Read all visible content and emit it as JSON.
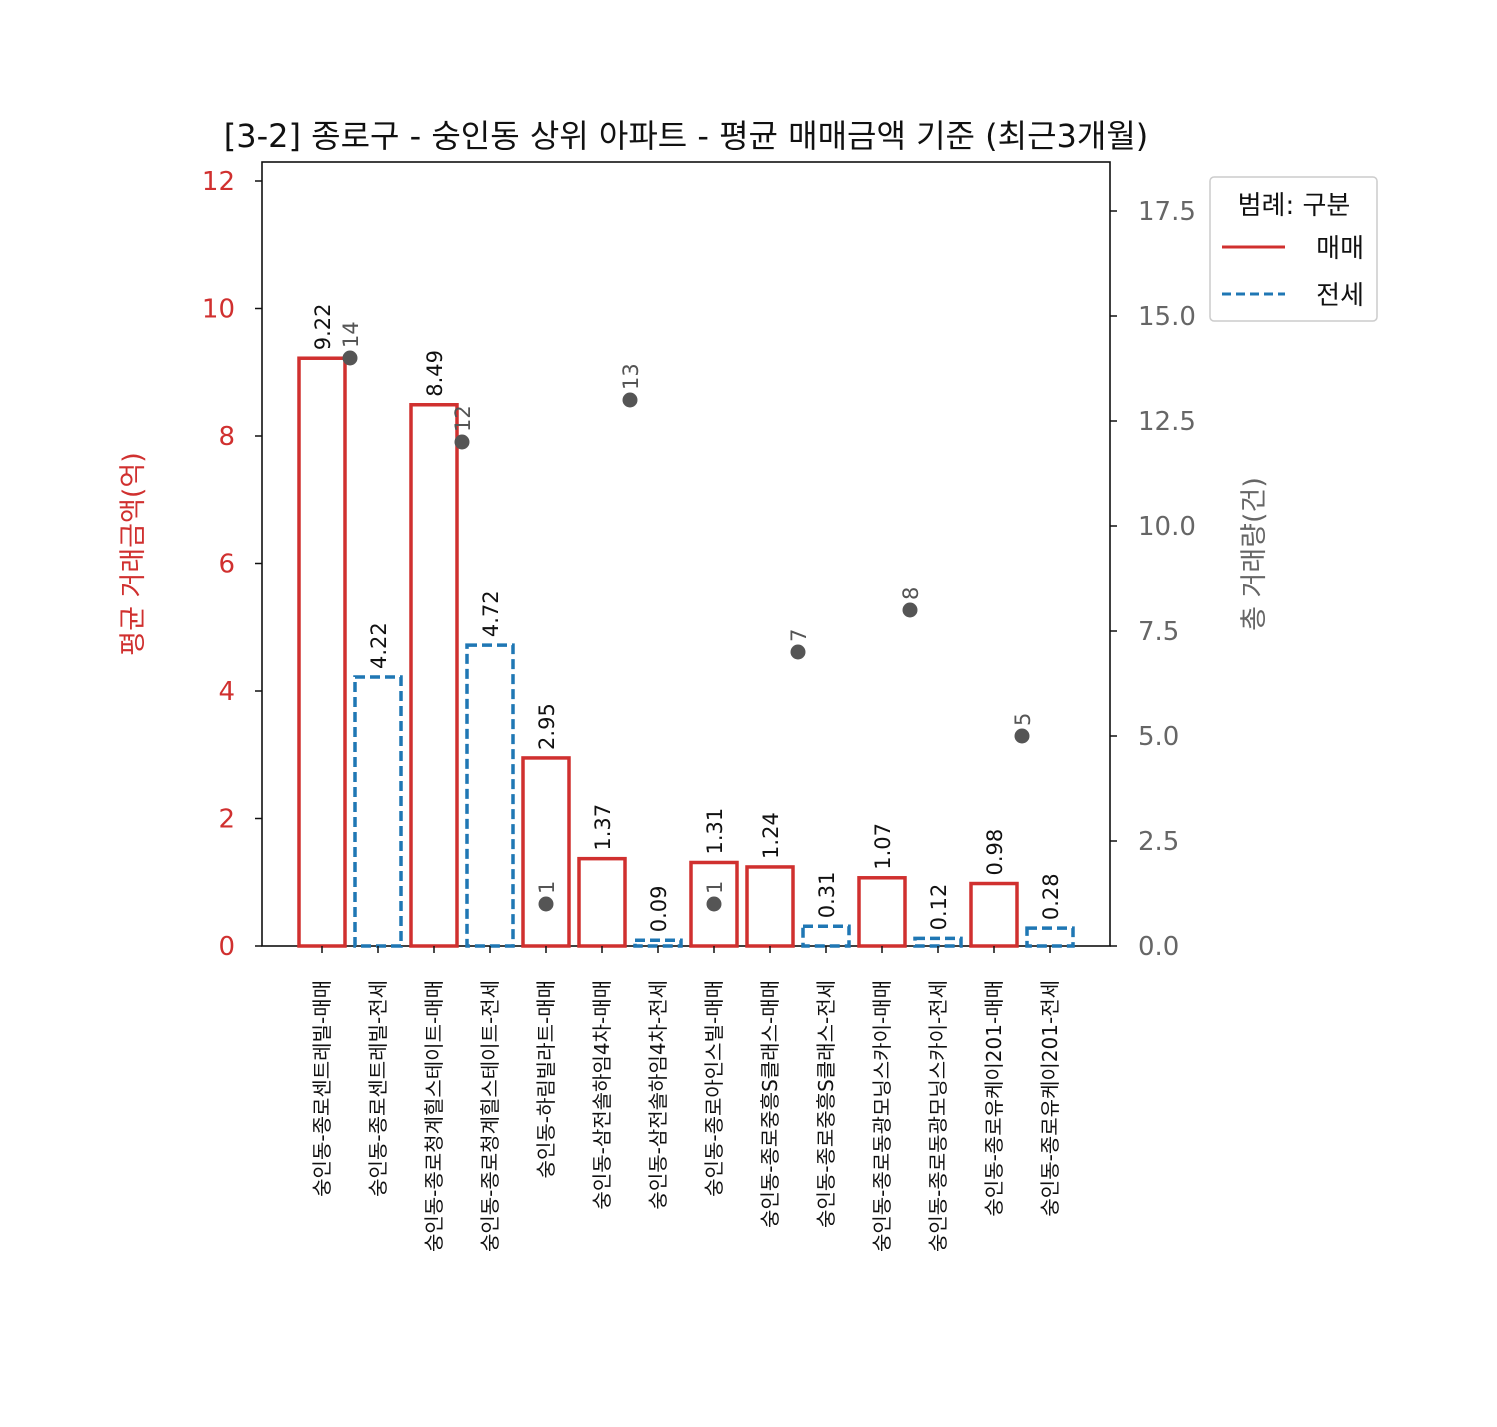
{
  "chart_data": {
    "type": "bar",
    "title": "[3-2] 종로구 - 숭인동 상위 아파트 - 평균 매매금액 기준 (최근3개월)",
    "ylabel": "평균 거래금액(억)",
    "y2label": "총 거래량(건)",
    "ylim": [
      0,
      12
    ],
    "y2lim": [
      0,
      18.5
    ],
    "yticks": [
      "0",
      "2",
      "4",
      "6",
      "8",
      "10",
      "12"
    ],
    "y2ticks": [
      "0.0",
      "2.5",
      "5.0",
      "7.5",
      "10.0",
      "12.5",
      "15.0",
      "17.5"
    ],
    "categories": [
      "숭인동-종로센트레빌-매매",
      "숭인동-종로센트레빌-전세",
      "숭인동-종로청계힐스테이트-매매",
      "숭인동-종로청계힐스테이트-전세",
      "숭인동-하림빌라트-매매",
      "숭인동-삼전솔하임4차-매매",
      "숭인동-삼전솔하임4차-전세",
      "숭인동-종로아인스빌-매매",
      "숭인동-종로중흥S클래스-매매",
      "숭인동-종로중흥S클래스-전세",
      "숭인동-종로동광모닝스카이-매매",
      "숭인동-종로동광모닝스카이-전세",
      "숭인동-종로유케이201-매매",
      "숭인동-종로유케이201-전세"
    ],
    "kinds": [
      "매매",
      "전세",
      "매매",
      "전세",
      "매매",
      "매매",
      "전세",
      "매매",
      "매매",
      "전세",
      "매매",
      "전세",
      "매매",
      "전세"
    ],
    "values": [
      9.22,
      4.22,
      8.49,
      4.72,
      2.95,
      1.37,
      0.09,
      1.31,
      1.24,
      0.31,
      1.07,
      0.12,
      0.98,
      0.28
    ],
    "value_labels": [
      "9.22",
      "4.22",
      "8.49",
      "4.72",
      "2.95",
      "1.37",
      "0.09",
      "1.31",
      "1.24",
      "0.31",
      "1.07",
      "0.12",
      "0.98",
      "0.28"
    ],
    "counts": [
      {
        "x": 0.5,
        "value": 14,
        "label": "14"
      },
      {
        "x": 2.5,
        "value": 12,
        "label": "12"
      },
      {
        "x": 4.0,
        "value": 1,
        "label": "1"
      },
      {
        "x": 5.5,
        "value": 13,
        "label": "13"
      },
      {
        "x": 7.0,
        "value": 1,
        "label": "1"
      },
      {
        "x": 8.5,
        "value": 7,
        "label": "7"
      },
      {
        "x": 10.5,
        "value": 8,
        "label": "8"
      },
      {
        "x": 12.5,
        "value": 5,
        "label": "5"
      }
    ],
    "legend": {
      "title": "범례: 구분",
      "placement": "top-right",
      "entries": [
        {
          "label": "매매",
          "color": "#d0302f",
          "style": "solid"
        },
        {
          "label": "전세",
          "color": "#1f77b4",
          "style": "dashed"
        }
      ]
    },
    "colors": {
      "sale": "#d0302f",
      "lease": "#1f77b4",
      "count": "#555555",
      "right_axis": "#666666"
    }
  }
}
